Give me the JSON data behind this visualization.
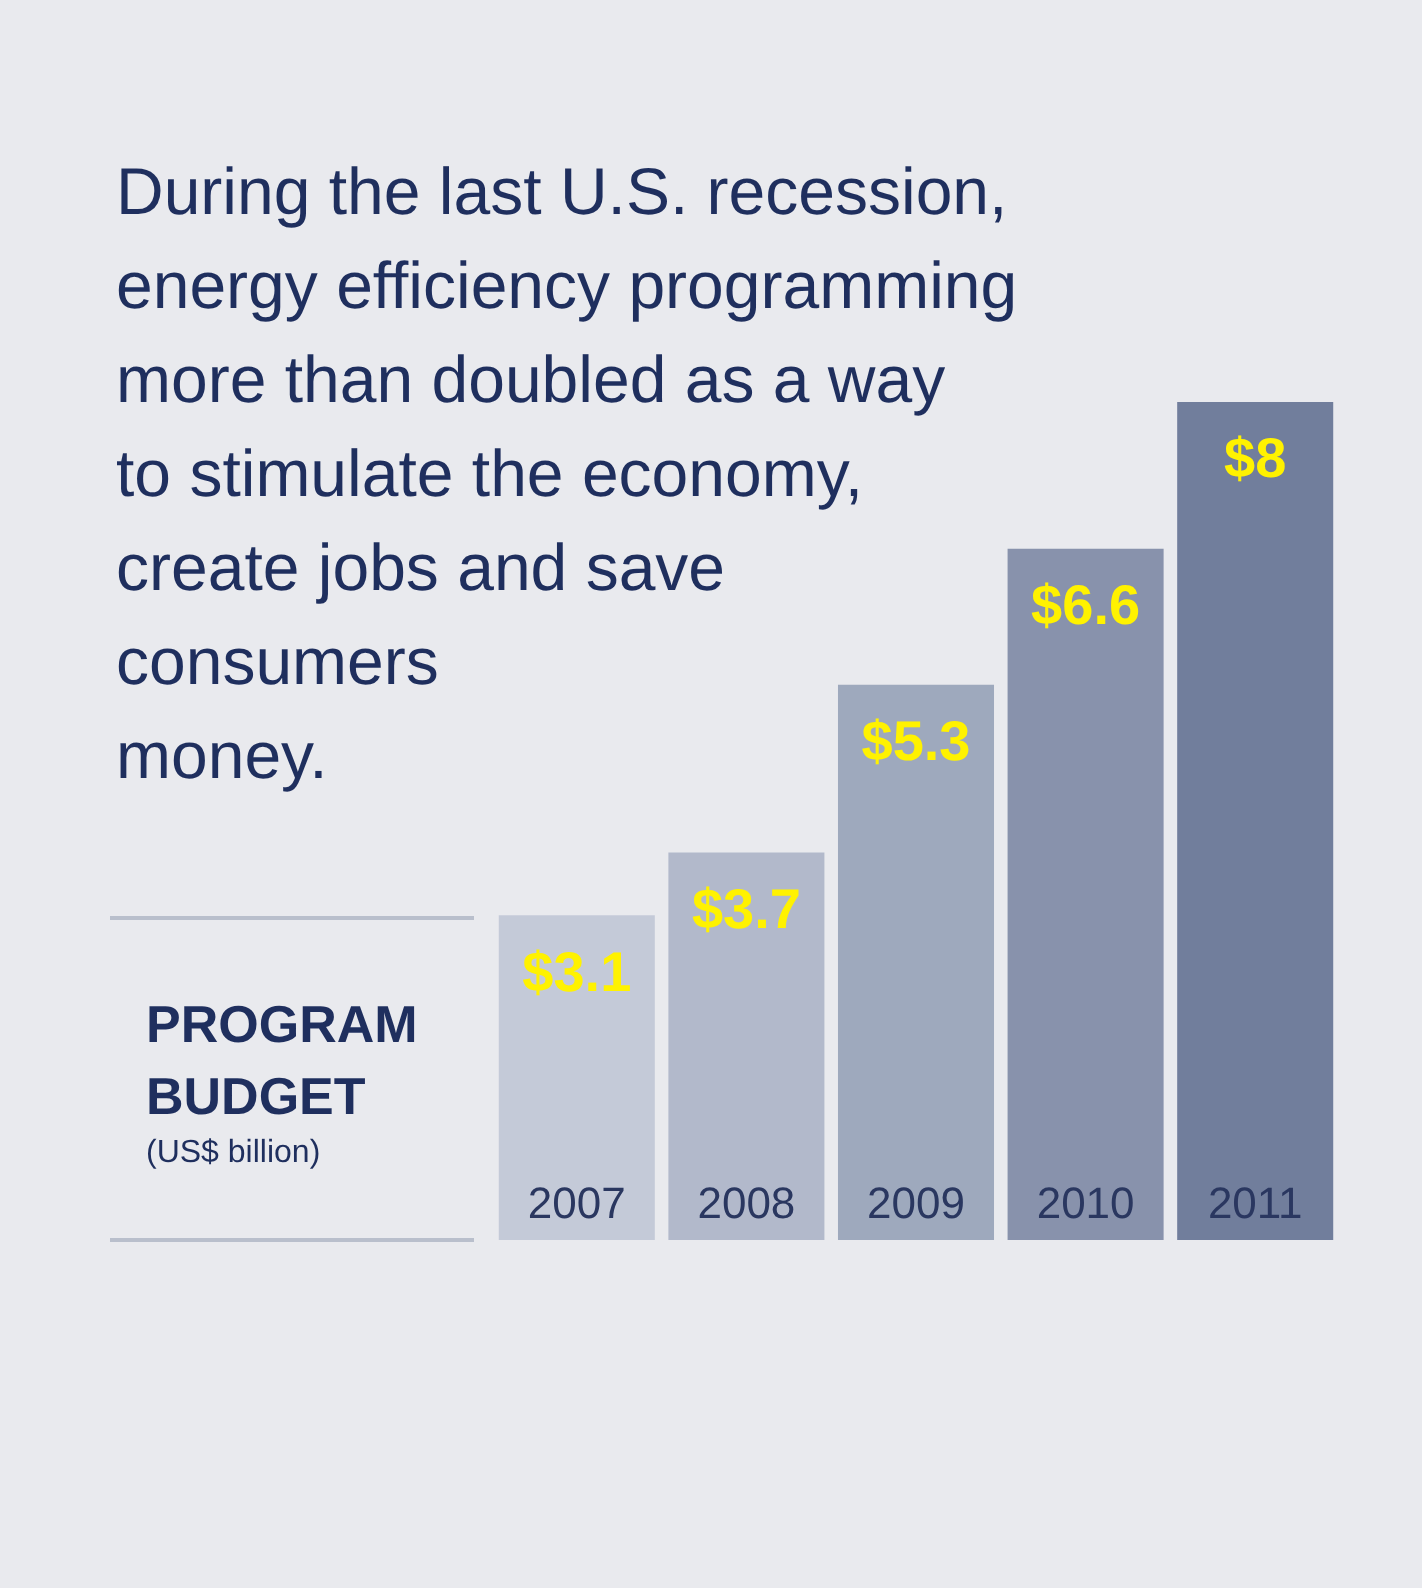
{
  "chart_data": {
    "type": "bar",
    "title": "During the last U.S. recession,\nenergy efficiency programming\nmore than doubled as a way\nto stimulate the economy,\ncreate jobs and save\nconsumers\nmoney.",
    "ylabel": "PROGRAM BUDGET",
    "annotations": [
      "(US$ billion)"
    ],
    "categories": [
      "2007",
      "2008",
      "2009",
      "2010",
      "2011"
    ],
    "values": [
      3.1,
      3.7,
      5.3,
      6.6,
      8
    ],
    "colors": [
      "#c4cad8",
      "#b2b9cb",
      "#9ea9bd",
      "#8892ac",
      "#717e9c"
    ],
    "value_labels": [
      "$3.1",
      "$3.7",
      "$5.3",
      "$6.6",
      "$8"
    ]
  }
}
